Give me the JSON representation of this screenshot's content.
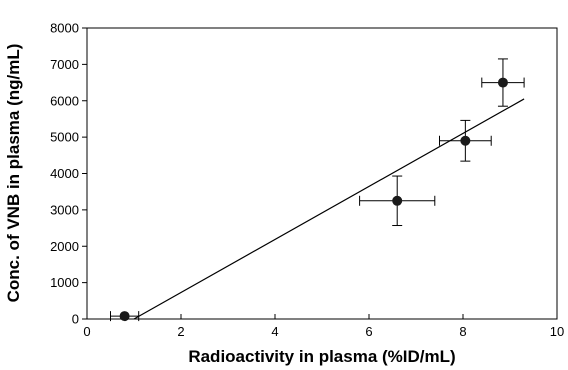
{
  "chart_data": {
    "type": "scatter",
    "title": "",
    "xlabel": "Radioactivity in plasma (%ID/mL)",
    "ylabel": "Conc. of VNB in plasma (ng/mL)",
    "xlim": [
      0,
      10
    ],
    "ylim": [
      0,
      8000
    ],
    "xticks": [
      0,
      2,
      4,
      6,
      8,
      10
    ],
    "yticks": [
      0,
      1000,
      2000,
      3000,
      4000,
      5000,
      6000,
      7000,
      8000
    ],
    "grid": false,
    "legend": "none",
    "points": [
      {
        "x": 0.8,
        "y": 80,
        "x_err": 0.3,
        "y_err": 0
      },
      {
        "x": 6.6,
        "y": 3250,
        "x_err": 0.8,
        "y_err": 680
      },
      {
        "x": 8.05,
        "y": 4900,
        "x_err": 0.55,
        "y_err": 560
      },
      {
        "x": 8.85,
        "y": 6500,
        "x_err": 0.45,
        "y_err": 650
      }
    ],
    "fit_line": {
      "x": [
        1.0,
        9.3
      ],
      "y": [
        0,
        6050
      ]
    },
    "colors": {
      "marker": "#1a1a1a",
      "line": "#000000"
    }
  }
}
